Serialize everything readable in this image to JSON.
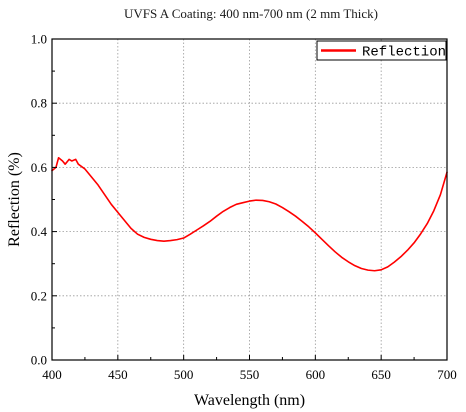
{
  "chart_data": {
    "type": "line",
    "title": "UVFS A Coating: 400 nm-700 nm (2 mm Thick)",
    "xlabel": "Wavelength (nm)",
    "ylabel": "Reflection (%)",
    "xlim": [
      400,
      700
    ],
    "ylim": [
      0.0,
      1.0
    ],
    "x_ticks": [
      400,
      450,
      500,
      550,
      600,
      650,
      700
    ],
    "x_tick_labels": [
      "400",
      "450",
      "500",
      "550",
      "600",
      "650",
      "700"
    ],
    "y_ticks": [
      0.0,
      0.2,
      0.4,
      0.6,
      0.8,
      1.0
    ],
    "y_tick_labels": [
      "0.0",
      "0.2",
      "0.4",
      "0.6",
      "0.8",
      "1.0"
    ],
    "grid": true,
    "legend_position": "top-right",
    "series": [
      {
        "name": "Reflection",
        "color": "#ff0000",
        "x": [
          400,
          403,
          405,
          408,
          410,
          413,
          415,
          418,
          420,
          425,
          430,
          435,
          440,
          445,
          450,
          455,
          460,
          465,
          470,
          475,
          480,
          485,
          490,
          495,
          500,
          505,
          510,
          515,
          520,
          525,
          530,
          535,
          540,
          545,
          550,
          555,
          560,
          565,
          570,
          575,
          580,
          585,
          590,
          595,
          600,
          605,
          610,
          615,
          620,
          625,
          630,
          635,
          640,
          645,
          650,
          655,
          660,
          665,
          670,
          675,
          680,
          685,
          690,
          695,
          700
        ],
        "y": [
          0.59,
          0.6,
          0.63,
          0.62,
          0.61,
          0.625,
          0.62,
          0.625,
          0.61,
          0.595,
          0.57,
          0.545,
          0.515,
          0.485,
          0.46,
          0.435,
          0.41,
          0.392,
          0.382,
          0.376,
          0.372,
          0.37,
          0.372,
          0.375,
          0.38,
          0.392,
          0.405,
          0.418,
          0.432,
          0.448,
          0.463,
          0.475,
          0.485,
          0.49,
          0.495,
          0.498,
          0.497,
          0.493,
          0.486,
          0.475,
          0.462,
          0.448,
          0.432,
          0.415,
          0.396,
          0.376,
          0.356,
          0.337,
          0.32,
          0.306,
          0.294,
          0.285,
          0.28,
          0.278,
          0.281,
          0.29,
          0.305,
          0.322,
          0.342,
          0.365,
          0.393,
          0.425,
          0.465,
          0.515,
          0.585
        ]
      }
    ]
  }
}
